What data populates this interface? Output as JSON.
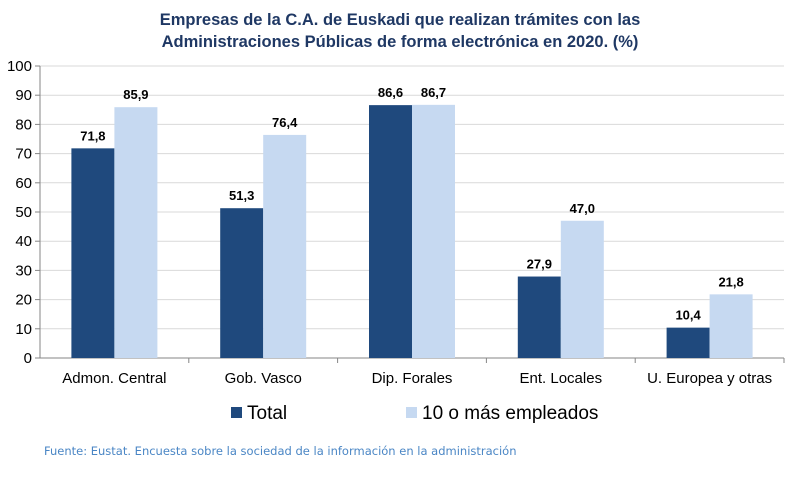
{
  "title_lines": [
    "Empresas de la C.A. de Euskadi que realizan trámites con las",
    "Administraciones Públicas de forma electrónica en 2020. (%)"
  ],
  "source": "Fuente: Eustat. Encuesta sobre la sociedad de la información en la administración",
  "colors": {
    "total": "#1f497d",
    "grandes": "#c6d9f1"
  },
  "chart_data": {
    "type": "bar",
    "title": "Empresas de la C.A. de Euskadi que realizan trámites con las Administraciones Públicas de forma electrónica en 2020. (%)",
    "categories": [
      "Admon. Central",
      "Gob. Vasco",
      "Dip. Forales",
      "Ent. Locales",
      "U. Europea y otras"
    ],
    "series": [
      {
        "name": "Total",
        "values": [
          71.8,
          51.3,
          86.6,
          27.9,
          10.4
        ],
        "labels": [
          "71,8",
          "51,3",
          "86,6",
          "27,9",
          "10,4"
        ]
      },
      {
        "name": "10 o más empleados",
        "values": [
          85.9,
          76.4,
          86.7,
          47.0,
          21.8
        ],
        "labels": [
          "85,9",
          "76,4",
          "86,7",
          "47,0",
          "21,8"
        ]
      }
    ],
    "ylim": [
      0,
      100
    ],
    "yticks": [
      0,
      10,
      20,
      30,
      40,
      50,
      60,
      70,
      80,
      90,
      100
    ],
    "grid": true,
    "legend": "bottom"
  }
}
